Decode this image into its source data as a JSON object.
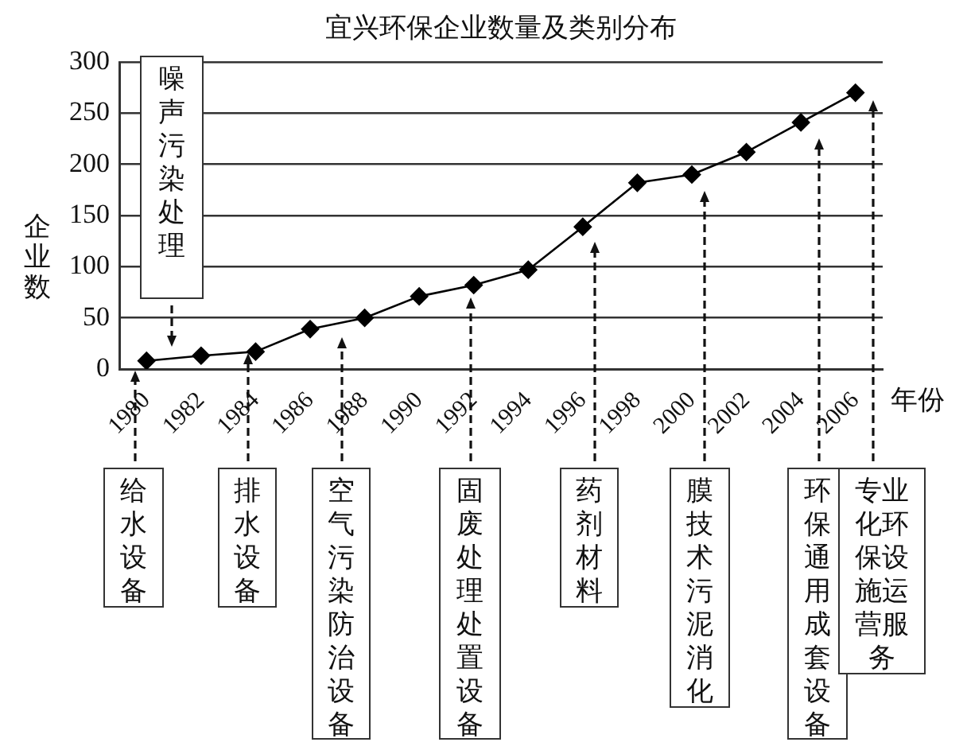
{
  "chart_data": {
    "type": "line",
    "title": "宜兴环保企业数量及类别分布",
    "xlabel": "年份",
    "ylabel": "企业数",
    "categories": [
      "1980",
      "1982",
      "1984",
      "1986",
      "1988",
      "1990",
      "1992",
      "1994",
      "1996",
      "1998",
      "2000",
      "2002",
      "2004",
      "2006"
    ],
    "series": [
      {
        "color": "#000000",
        "values": [
          8,
          13,
          17,
          39,
          50,
          71,
          82,
          97,
          139,
          182,
          190,
          212,
          241,
          270
        ]
      }
    ],
    "ylim": [
      0,
      300
    ],
    "yticks": [
      0,
      50,
      100,
      150,
      200,
      250,
      300
    ],
    "grid": "y",
    "legend": false,
    "marker": "diamond",
    "line_style": "solid",
    "annotations": [
      "给水设备",
      "噪声污染处理",
      "排水设备",
      "空气污染防治设备",
      "固废处理处置设备",
      "药剂材料",
      "膜技术污泥消化",
      "环保通用成套设备",
      "专业化环保设施运营服务"
    ]
  }
}
